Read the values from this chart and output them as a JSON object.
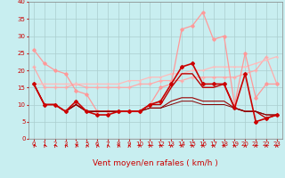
{
  "xlabel": "Vent moyen/en rafales ( km/h )",
  "xlim": [
    -0.5,
    23.5
  ],
  "ylim": [
    0,
    40
  ],
  "xticks": [
    0,
    1,
    2,
    3,
    4,
    5,
    6,
    7,
    8,
    9,
    10,
    11,
    12,
    13,
    14,
    15,
    16,
    17,
    18,
    19,
    20,
    21,
    22,
    23
  ],
  "yticks": [
    0,
    5,
    10,
    15,
    20,
    25,
    30,
    35,
    40
  ],
  "background_color": "#c8eef0",
  "grid_color": "#aacece",
  "lines": [
    {
      "x": [
        0,
        1,
        2,
        3,
        4,
        5,
        6,
        7,
        8,
        9,
        10,
        11,
        12,
        13,
        14,
        15,
        16,
        17,
        18,
        19,
        20,
        21,
        22,
        23
      ],
      "y": [
        26,
        22,
        20,
        19,
        14,
        13,
        8,
        8,
        8,
        8,
        8,
        10,
        15,
        16,
        32,
        33,
        37,
        29,
        30,
        10,
        25,
        12,
        16,
        16
      ],
      "color": "#ff9999",
      "lw": 0.9,
      "marker": "D",
      "markersize": 1.8,
      "zorder": 3
    },
    {
      "x": [
        0,
        1,
        2,
        3,
        4,
        5,
        6,
        7,
        8,
        9,
        10,
        11,
        12,
        13,
        14,
        15,
        16,
        17,
        18,
        19,
        20,
        21,
        22,
        23
      ],
      "y": [
        21,
        15,
        15,
        15,
        16,
        15,
        15,
        15,
        15,
        15,
        16,
        16,
        17,
        17,
        17,
        18,
        18,
        18,
        18,
        18,
        19,
        20,
        24,
        16
      ],
      "color": "#ffaaaa",
      "lw": 0.9,
      "marker": "+",
      "markersize": 2.5,
      "zorder": 2
    },
    {
      "x": [
        0,
        1,
        2,
        3,
        4,
        5,
        6,
        7,
        8,
        9,
        10,
        11,
        12,
        13,
        14,
        15,
        16,
        17,
        18,
        19,
        20,
        21,
        22,
        23
      ],
      "y": [
        16,
        16,
        16,
        16,
        16,
        16,
        16,
        16,
        16,
        17,
        17,
        18,
        18,
        19,
        19,
        20,
        20,
        21,
        21,
        21,
        21,
        22,
        23,
        24
      ],
      "color": "#ffbbbb",
      "lw": 0.9,
      "marker": "+",
      "markersize": 2.0,
      "zorder": 2
    },
    {
      "x": [
        0,
        1,
        2,
        3,
        4,
        5,
        6,
        7,
        8,
        9,
        10,
        11,
        12,
        13,
        14,
        15,
        16,
        17,
        18,
        19,
        20,
        21,
        22,
        23
      ],
      "y": [
        16,
        10,
        10,
        8,
        11,
        8,
        7,
        7,
        8,
        8,
        8,
        10,
        11,
        16,
        21,
        22,
        16,
        16,
        16,
        9,
        19,
        5,
        6,
        7
      ],
      "color": "#cc0000",
      "lw": 1.2,
      "marker": "D",
      "markersize": 2.0,
      "zorder": 4
    },
    {
      "x": [
        0,
        1,
        2,
        3,
        4,
        5,
        6,
        7,
        8,
        9,
        10,
        11,
        12,
        13,
        14,
        15,
        16,
        17,
        18,
        19,
        20,
        21,
        22,
        23
      ],
      "y": [
        16,
        10,
        10,
        8,
        10,
        8,
        8,
        8,
        8,
        8,
        8,
        10,
        10,
        15,
        19,
        19,
        15,
        15,
        16,
        9,
        8,
        8,
        6,
        7
      ],
      "color": "#bb0000",
      "lw": 1.0,
      "marker": null,
      "markersize": 0,
      "zorder": 3
    },
    {
      "x": [
        0,
        1,
        2,
        3,
        4,
        5,
        6,
        7,
        8,
        9,
        10,
        11,
        12,
        13,
        14,
        15,
        16,
        17,
        18,
        19,
        20,
        21,
        22,
        23
      ],
      "y": [
        16,
        10,
        10,
        8,
        10,
        8,
        8,
        8,
        8,
        8,
        8,
        9,
        9,
        11,
        12,
        12,
        11,
        11,
        11,
        9,
        8,
        8,
        7,
        7
      ],
      "color": "#990000",
      "lw": 0.8,
      "marker": null,
      "markersize": 0,
      "zorder": 3
    },
    {
      "x": [
        0,
        1,
        2,
        3,
        4,
        5,
        6,
        7,
        8,
        9,
        10,
        11,
        12,
        13,
        14,
        15,
        16,
        17,
        18,
        19,
        20,
        21,
        22,
        23
      ],
      "y": [
        16,
        10,
        10,
        8,
        10,
        8,
        8,
        8,
        8,
        8,
        8,
        9,
        9,
        10,
        11,
        11,
        10,
        10,
        10,
        9,
        8,
        8,
        7,
        7
      ],
      "color": "#880000",
      "lw": 0.7,
      "marker": null,
      "markersize": 0,
      "zorder": 3
    }
  ],
  "arrow_color": "#cc0000",
  "tick_fontsize": 5,
  "xlabel_fontsize": 6.5,
  "xlabel_color": "#cc0000",
  "tick_color": "#cc0000",
  "spine_color": "#888888"
}
